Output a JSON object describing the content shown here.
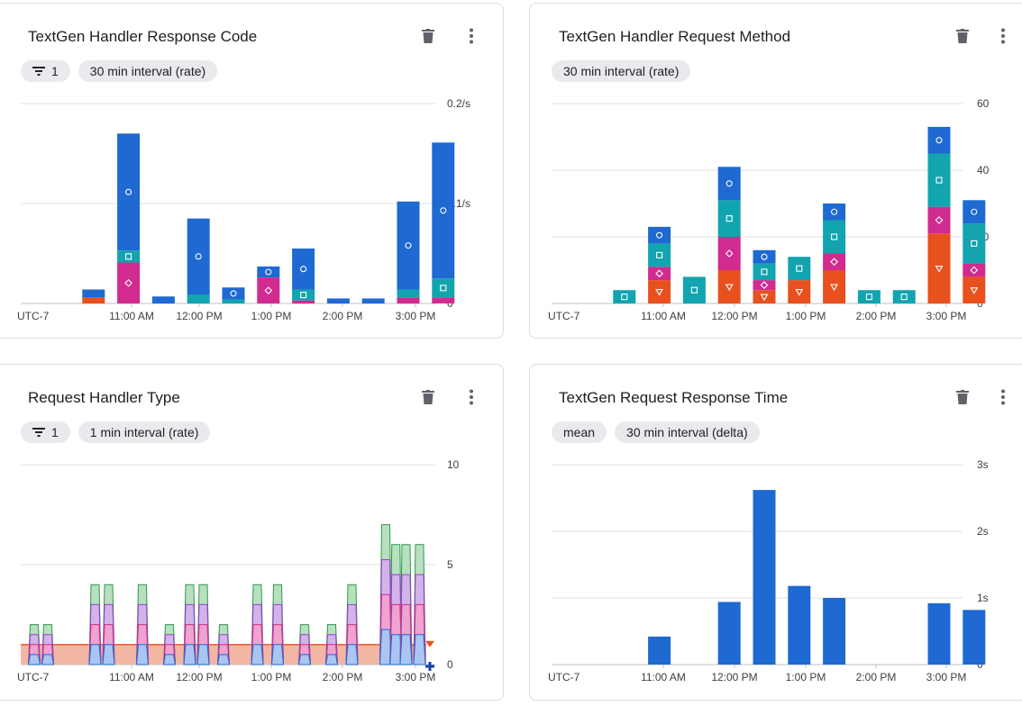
{
  "cards": [
    {
      "title": "TextGen Handler Response Code",
      "chips": [
        {
          "label": "1",
          "has_filter_icon": true
        },
        {
          "label": "30 min interval (rate)"
        }
      ],
      "icons": [
        "delete-icon",
        "more-vert-icon"
      ]
    },
    {
      "title": "TextGen Handler Request Method",
      "chips": [
        {
          "label": "30 min interval (rate)"
        }
      ],
      "icons": [
        "delete-icon",
        "more-vert-icon"
      ]
    },
    {
      "title": "Request Handler Type",
      "chips": [
        {
          "label": "1",
          "has_filter_icon": true
        },
        {
          "label": "1 min interval (rate)"
        }
      ],
      "icons": [
        "delete-icon",
        "more-vert-icon"
      ]
    },
    {
      "title": "TextGen Request Response Time",
      "chips": [
        {
          "label": "mean"
        },
        {
          "label": "30 min interval (delta)"
        }
      ],
      "icons": [
        "delete-icon",
        "more-vert-icon"
      ]
    }
  ],
  "colors": {
    "blue": "#1e69d2",
    "teal": "#12a4af",
    "magenta": "#d12b8f",
    "orange": "#e8501e",
    "gridline": "#e0e0e0"
  },
  "chart_data": [
    {
      "type": "bar",
      "stacked": true,
      "timezone_label": "UTC-7",
      "x_tick_labels": [
        "11:00 AM",
        "12:00 PM",
        "1:00 PM",
        "2:00 PM",
        "3:00 PM"
      ],
      "y_tick_labels": [
        "0",
        "0.1/s",
        "0.2/s"
      ],
      "ylim": [
        0,
        0.2
      ],
      "x_slots": [
        0.5,
        1.5,
        2.5,
        3.5,
        4.5,
        5.5,
        6.5,
        7.5,
        8.5,
        9.5,
        10.5,
        11.5
      ],
      "series": [
        {
          "color": "#e8501e",
          "marker": "",
          "values": [
            0,
            0.006,
            0,
            0,
            0,
            0,
            0,
            0,
            0,
            0,
            0,
            0
          ]
        },
        {
          "color": "#d12b8f",
          "marker": "diamond",
          "values": [
            0,
            0,
            0.041,
            0,
            0,
            0,
            0.026,
            0.003,
            0,
            0,
            0.006,
            0.006
          ]
        },
        {
          "color": "#12a4af",
          "marker": "square",
          "values": [
            0,
            0,
            0.012,
            0,
            0.009,
            0.004,
            0,
            0.011,
            0,
            0,
            0.008,
            0.019
          ]
        },
        {
          "color": "#1e69d2",
          "marker": "circle",
          "values": [
            0,
            0.008,
            0.117,
            0.007,
            0.076,
            0.012,
            0.011,
            0.041,
            0.005,
            0.005,
            0.088,
            0.136
          ]
        }
      ]
    },
    {
      "type": "bar",
      "stacked": true,
      "timezone_label": "UTC-7",
      "x_tick_labels": [
        "11:00 AM",
        "12:00 PM",
        "1:00 PM",
        "2:00 PM",
        "3:00 PM"
      ],
      "y_tick_labels": [
        "0",
        "20",
        "40",
        "60"
      ],
      "ylim": [
        0,
        60
      ],
      "x_slots": [
        0.5,
        1.5,
        2.5,
        3.5,
        4.5,
        5.5,
        6.5,
        7.5,
        8.5,
        9.5,
        10.5,
        11.5
      ],
      "series": [
        {
          "color": "#e8501e",
          "marker": "triangle-down",
          "values": [
            0,
            0,
            7,
            0,
            10,
            4,
            7,
            10,
            0,
            0,
            21,
            8
          ]
        },
        {
          "color": "#d12b8f",
          "marker": "diamond",
          "values": [
            0,
            0,
            4,
            0,
            10,
            3,
            0,
            5,
            0,
            0,
            8,
            4
          ]
        },
        {
          "color": "#12a4af",
          "marker": "square",
          "values": [
            0,
            4,
            7,
            8,
            11,
            5,
            7,
            10,
            4,
            4,
            16,
            12
          ]
        },
        {
          "color": "#1e69d2",
          "marker": "circle",
          "values": [
            0,
            0,
            5,
            0,
            10,
            4,
            0,
            5,
            0,
            0,
            8,
            7
          ]
        }
      ]
    },
    {
      "type": "area",
      "stacked": true,
      "timezone_label": "UTC-7",
      "x_tick_labels": [
        "11:00 AM",
        "12:00 PM",
        "1:00 PM",
        "2:00 PM",
        "3:00 PM"
      ],
      "y_tick_labels": [
        "0",
        "5",
        "10"
      ],
      "ylim": [
        0,
        10
      ],
      "x_range": [
        0,
        60
      ],
      "series": [
        {
          "color": "#e8501e",
          "fill": "#f2b6a4",
          "baseline": 1
        },
        {
          "color": "#2e9a4a",
          "fill": "#b7dfc0"
        },
        {
          "color": "#9c3fd1",
          "fill": "#d2b4ea"
        },
        {
          "color": "#d12b8f",
          "fill": "#efa3cf"
        },
        {
          "color": "#1e69d2",
          "fill": "#aac6f0"
        }
      ],
      "spikes": [
        {
          "x": 2,
          "h": 2
        },
        {
          "x": 4,
          "h": 2
        },
        {
          "x": 11,
          "h": 4
        },
        {
          "x": 13,
          "h": 4
        },
        {
          "x": 18,
          "h": 4
        },
        {
          "x": 22,
          "h": 2
        },
        {
          "x": 25,
          "h": 4
        },
        {
          "x": 27,
          "h": 4
        },
        {
          "x": 30,
          "h": 2
        },
        {
          "x": 35,
          "h": 4
        },
        {
          "x": 38,
          "h": 4
        },
        {
          "x": 42,
          "h": 2
        },
        {
          "x": 46,
          "h": 2
        },
        {
          "x": 49,
          "h": 4
        },
        {
          "x": 54,
          "h": 7
        },
        {
          "x": 55.5,
          "h": 6
        },
        {
          "x": 57,
          "h": 6
        },
        {
          "x": 59,
          "h": 6
        }
      ],
      "end_markers": [
        "triangle-down",
        "plus"
      ]
    },
    {
      "type": "bar",
      "timezone_label": "UTC-7",
      "x_tick_labels": [
        "11:00 AM",
        "12:00 PM",
        "1:00 PM",
        "2:00 PM",
        "3:00 PM"
      ],
      "y_tick_labels": [
        "0",
        "1s",
        "2s",
        "3s"
      ],
      "ylim": [
        0,
        3
      ],
      "x_slots": [
        0.5,
        1.5,
        2.5,
        3.5,
        4.5,
        5.5,
        6.5,
        7.5,
        8.5,
        9.5,
        10.5,
        11.5
      ],
      "series": [
        {
          "color": "#1e69d2",
          "values": [
            0,
            0,
            0.42,
            0,
            0.94,
            2.62,
            1.18,
            1.0,
            0,
            0,
            0.92,
            0.82
          ]
        }
      ]
    }
  ]
}
